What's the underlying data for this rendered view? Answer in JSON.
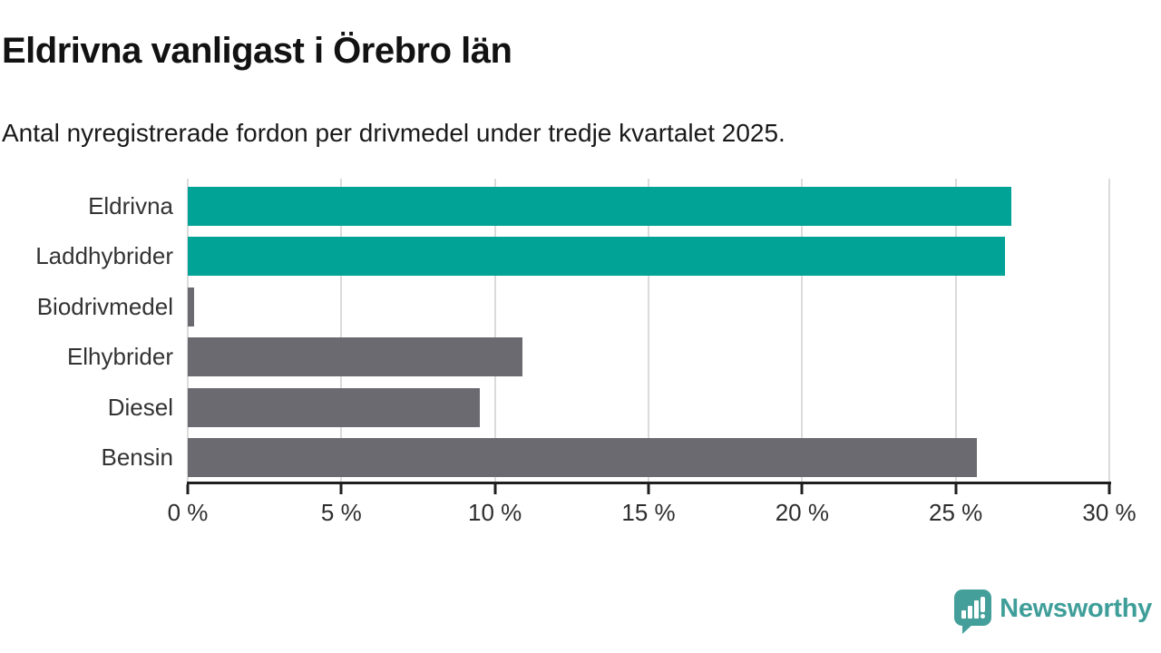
{
  "chart_data": {
    "type": "bar",
    "orientation": "horizontal",
    "title": "Eldrivna vanligast i Örebro län",
    "subtitle": "Antal nyregistrerade fordon per drivmedel under tredje kvartalet 2025.",
    "categories": [
      "Eldrivna",
      "Laddhybrider",
      "Biodrivmedel",
      "Elhybrider",
      "Diesel",
      "Bensin"
    ],
    "values": [
      26.8,
      26.6,
      0.2,
      10.9,
      9.5,
      25.7
    ],
    "unit": "%",
    "bar_colors": [
      "#00a396",
      "#00a396",
      "#6b6a70",
      "#6b6a70",
      "#6b6a70",
      "#6b6a70"
    ],
    "highlight_color": "#00a396",
    "default_color": "#6b6a70",
    "xlabel": "",
    "ylabel": "",
    "xlim": [
      0,
      30
    ],
    "x_ticks": [
      0,
      5,
      10,
      15,
      20,
      25,
      30
    ],
    "x_tick_labels": [
      "0 %",
      "5 %",
      "10 %",
      "15 %",
      "20 %",
      "25 %",
      "30 %"
    ],
    "grid": "vertical-gridlines",
    "legend": "none"
  },
  "footer": {
    "logo_text": "Newsworthy",
    "logo_color": "#3f9e99",
    "logo_icon": "chart-speech-bubble-icon"
  },
  "colors": {
    "background": "#ffffff",
    "title": "#121212",
    "subtitle": "#1a1a1a",
    "axis": "#1f1f1f",
    "tick_label": "#2e2e2e",
    "category_label": "#333333",
    "gridline": "#dbdbdb"
  }
}
